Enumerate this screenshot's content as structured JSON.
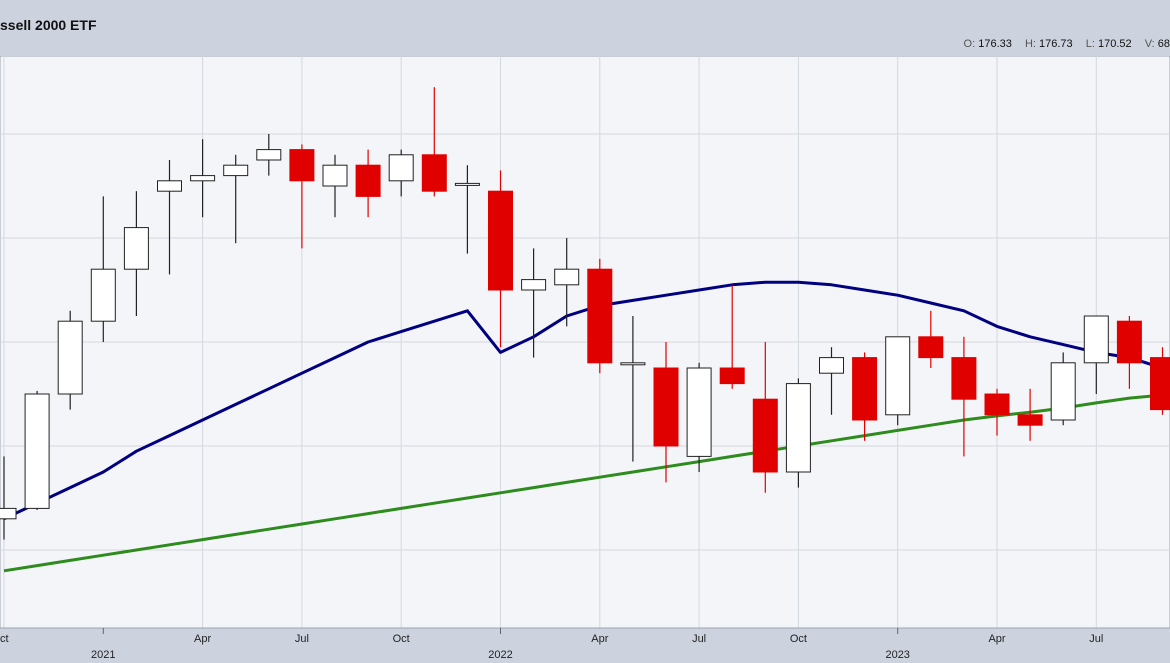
{
  "header": {
    "title": "ssell 2000 ETF",
    "ohlcv": [
      {
        "label": "O:",
        "value": "176.33"
      },
      {
        "label": "H:",
        "value": "176.73"
      },
      {
        "label": "L:",
        "value": "170.52"
      },
      {
        "label": "V:",
        "value": "68"
      }
    ]
  },
  "chart_data": {
    "type": "candlestick",
    "title": "ssell 2000 ETF",
    "x_month_labels": [
      "ct",
      "Apr",
      "Jul",
      "Oct",
      "Apr",
      "Jul",
      "Oct",
      "Apr",
      "Jul"
    ],
    "x_year_labels": [
      "2021",
      "2022",
      "2023"
    ],
    "grid": true,
    "colors": {
      "up": "#ffffff",
      "down": "#e00000",
      "ma_long": "#000080",
      "ma_short": "#2e8b1e"
    },
    "candles": [
      {
        "month": "2020-10",
        "o": 156.0,
        "h": 168.0,
        "l": 152.0,
        "c": 158.0
      },
      {
        "month": "2020-11",
        "o": 158.0,
        "h": 180.6,
        "l": 157.7,
        "c": 180.0
      },
      {
        "month": "2020-12",
        "o": 180.0,
        "h": 196.0,
        "l": 177.0,
        "c": 194.0
      },
      {
        "month": "2021-01",
        "o": 194.0,
        "h": 218.0,
        "l": 190.0,
        "c": 204.0
      },
      {
        "month": "2021-02",
        "o": 204.0,
        "h": 219.0,
        "l": 195.0,
        "c": 212.0
      },
      {
        "month": "2021-03",
        "o": 219.0,
        "h": 225.0,
        "l": 203.0,
        "c": 221.0
      },
      {
        "month": "2021-04",
        "o": 221.0,
        "h": 229.0,
        "l": 214.0,
        "c": 222.0
      },
      {
        "month": "2021-05",
        "o": 222.0,
        "h": 226.0,
        "l": 209.0,
        "c": 224.0
      },
      {
        "month": "2021-06",
        "o": 225.0,
        "h": 230.0,
        "l": 222.0,
        "c": 227.0
      },
      {
        "month": "2021-07",
        "o": 227.0,
        "h": 228.0,
        "l": 208.0,
        "c": 221.0
      },
      {
        "month": "2021-08",
        "o": 220.0,
        "h": 226.0,
        "l": 214.0,
        "c": 224.0
      },
      {
        "month": "2021-09",
        "o": 224.0,
        "h": 227.0,
        "l": 214.0,
        "c": 218.0
      },
      {
        "month": "2021-10",
        "o": 221.0,
        "h": 227.0,
        "l": 218.0,
        "c": 226.0
      },
      {
        "month": "2021-11",
        "o": 226.0,
        "h": 239.0,
        "l": 218.0,
        "c": 219.0
      },
      {
        "month": "2021-12",
        "o": 220.5,
        "h": 224.0,
        "l": 207.0,
        "c": 220.5
      },
      {
        "month": "2022-01",
        "o": 219.0,
        "h": 223.0,
        "l": 189.0,
        "c": 200.0
      },
      {
        "month": "2022-02",
        "o": 200.0,
        "h": 208.0,
        "l": 187.0,
        "c": 202.0
      },
      {
        "month": "2022-03",
        "o": 201.0,
        "h": 210.0,
        "l": 193.0,
        "c": 204.0
      },
      {
        "month": "2022-04",
        "o": 204.0,
        "h": 206.0,
        "l": 184.0,
        "c": 186.0
      },
      {
        "month": "2022-05",
        "o": 186.0,
        "h": 195.0,
        "l": 167.0,
        "c": 186.0
      },
      {
        "month": "2022-06",
        "o": 185.0,
        "h": 190.0,
        "l": 163.0,
        "c": 170.0
      },
      {
        "month": "2022-07",
        "o": 168.0,
        "h": 186.0,
        "l": 165.0,
        "c": 185.0
      },
      {
        "month": "2022-08",
        "o": 185.0,
        "h": 201.0,
        "l": 181.0,
        "c": 182.0
      },
      {
        "month": "2022-09",
        "o": 179.0,
        "h": 190.0,
        "l": 161.0,
        "c": 165.0
      },
      {
        "month": "2022-10",
        "o": 165.0,
        "h": 183.0,
        "l": 162.0,
        "c": 182.0
      },
      {
        "month": "2022-11",
        "o": 184.0,
        "h": 189.0,
        "l": 176.0,
        "c": 187.0
      },
      {
        "month": "2022-12",
        "o": 187.0,
        "h": 188.0,
        "l": 171.0,
        "c": 175.0
      },
      {
        "month": "2023-01",
        "o": 176.0,
        "h": 191.0,
        "l": 174.0,
        "c": 191.0
      },
      {
        "month": "2023-02",
        "o": 191.0,
        "h": 196.0,
        "l": 185.0,
        "c": 187.0
      },
      {
        "month": "2023-03",
        "o": 187.0,
        "h": 191.0,
        "l": 168.0,
        "c": 179.0
      },
      {
        "month": "2023-04",
        "o": 180.0,
        "h": 181.0,
        "l": 172.0,
        "c": 176.0
      },
      {
        "month": "2023-05",
        "o": 176.0,
        "h": 181.0,
        "l": 171.0,
        "c": 174.0
      },
      {
        "month": "2023-06",
        "o": 175.0,
        "h": 188.0,
        "l": 174.0,
        "c": 186.0
      },
      {
        "month": "2023-07",
        "o": 186.0,
        "h": 195.0,
        "l": 180.0,
        "c": 195.0
      },
      {
        "month": "2023-08",
        "o": 194.0,
        "h": 195.0,
        "l": 181.0,
        "c": 186.0
      },
      {
        "month": "2023-09",
        "o": 187.0,
        "h": 189.0,
        "l": 176.0,
        "c": 177.0
      }
    ],
    "ma_long": [
      156,
      159,
      162,
      165,
      169,
      172,
      175,
      178,
      181,
      184,
      187,
      190,
      192,
      194,
      196,
      188,
      191,
      195,
      197,
      198,
      199,
      200,
      201,
      201.5,
      201.5,
      201,
      200,
      199,
      197.5,
      196,
      193,
      191,
      189.5,
      188,
      187,
      185
    ],
    "ma_short": [
      146,
      147,
      148,
      149,
      150,
      151,
      152,
      153,
      154,
      155,
      156,
      157,
      158,
      159,
      160,
      161,
      162,
      163,
      164,
      165,
      166,
      167,
      168,
      169,
      170,
      171,
      172,
      173,
      174,
      175,
      175.8,
      176.5,
      177.3,
      178.3,
      179.2,
      179.8
    ],
    "ylim": [
      135,
      245
    ]
  }
}
